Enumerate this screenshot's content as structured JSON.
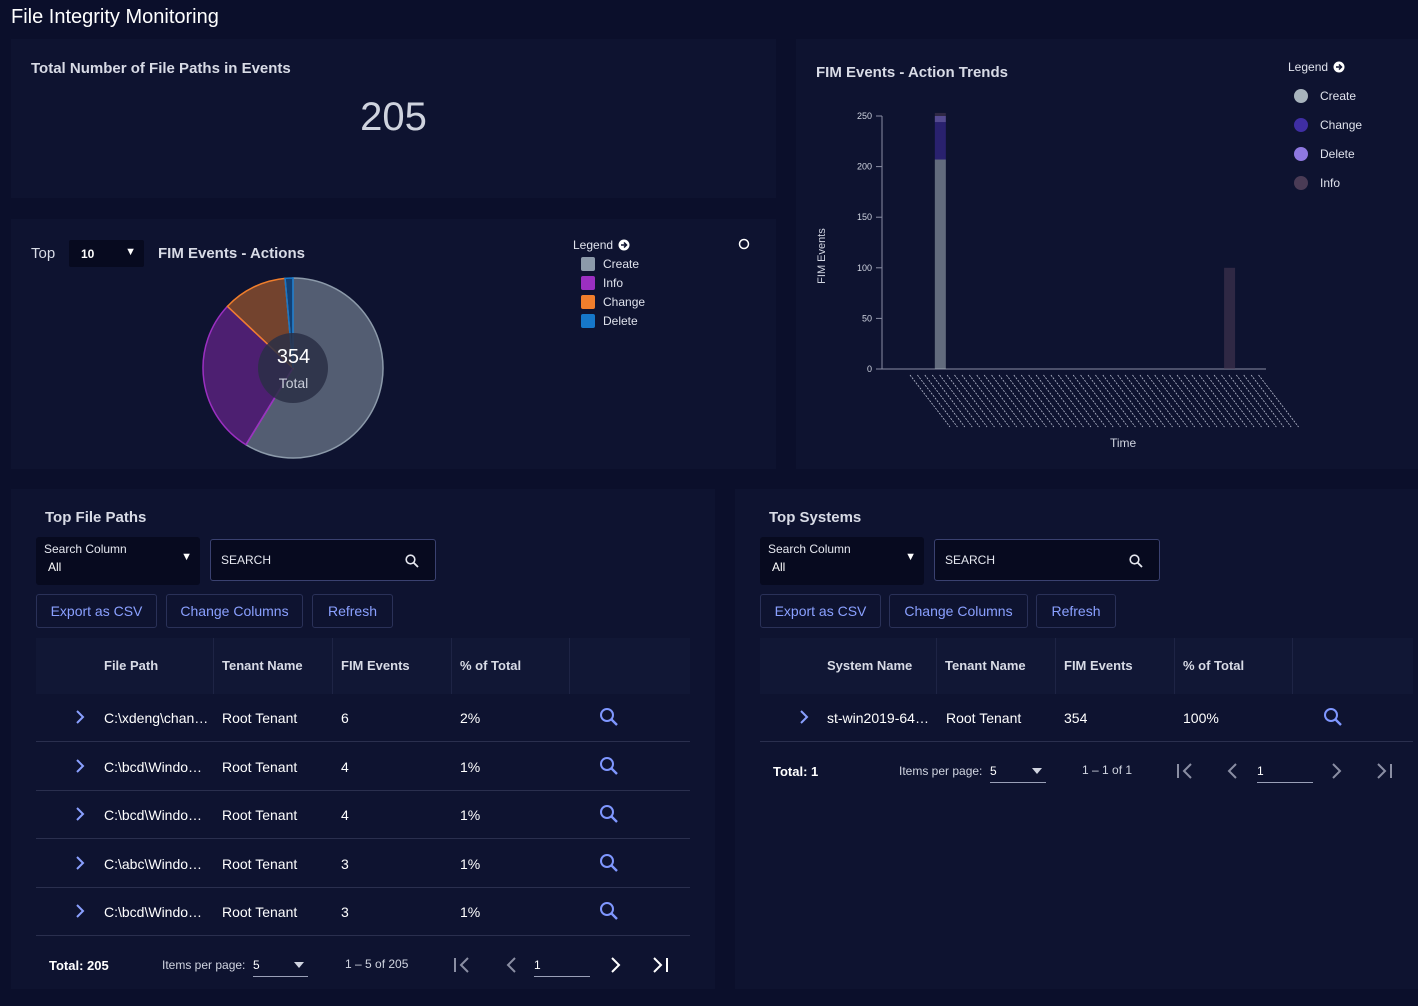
{
  "page": {
    "title": "File Integrity Monitoring"
  },
  "total_paths": {
    "title": "Total Number of File Paths in Events",
    "value": "205"
  },
  "actions_panel": {
    "top_label": "Top",
    "top_value": "10",
    "title": "FIM Events - Actions",
    "legend_title": "Legend",
    "legend": [
      {
        "label": "Create",
        "color": "#8c9aaa"
      },
      {
        "label": "Info",
        "color": "#9b2fc1"
      },
      {
        "label": "Change",
        "color": "#f07e2c"
      },
      {
        "label": "Delete",
        "color": "#1677c9"
      }
    ],
    "donut_value": "354",
    "donut_label": "Total"
  },
  "trends_panel": {
    "title": "FIM Events - Action Trends",
    "legend_title": "Legend",
    "legend": [
      {
        "label": "Create",
        "color": "#a8b4bd"
      },
      {
        "label": "Change",
        "color": "#3f2ea3"
      },
      {
        "label": "Delete",
        "color": "#8e78e0"
      },
      {
        "label": "Info",
        "color": "#4a3b55"
      }
    ]
  },
  "file_paths": {
    "title": "Top File Paths",
    "search_column_label": "Search Column",
    "search_column_value": "All",
    "search_placeholder": "SEARCH",
    "buttons": {
      "export": "Export as CSV",
      "columns": "Change Columns",
      "refresh": "Refresh"
    },
    "columns": [
      "File Path",
      "Tenant Name",
      "FIM Events",
      "% of Total"
    ],
    "rows": [
      {
        "path": "C:\\xdeng\\chan…",
        "tenant": "Root Tenant",
        "events": "6",
        "pct": "2%"
      },
      {
        "path": "C:\\bcd\\Windo…",
        "tenant": "Root Tenant",
        "events": "4",
        "pct": "1%"
      },
      {
        "path": "C:\\bcd\\Windo…",
        "tenant": "Root Tenant",
        "events": "4",
        "pct": "1%"
      },
      {
        "path": "C:\\abc\\Windo…",
        "tenant": "Root Tenant",
        "events": "3",
        "pct": "1%"
      },
      {
        "path": "C:\\bcd\\Windo…",
        "tenant": "Root Tenant",
        "events": "3",
        "pct": "1%"
      }
    ],
    "footer": {
      "total": "Total: 205",
      "items_label": "Items per page:",
      "items_value": "5",
      "range": "1 – 5 of 205",
      "page": "1"
    }
  },
  "systems": {
    "title": "Top Systems",
    "search_column_label": "Search Column",
    "search_column_value": "All",
    "search_placeholder": "SEARCH",
    "buttons": {
      "export": "Export as CSV",
      "columns": "Change Columns",
      "refresh": "Refresh"
    },
    "columns": [
      "System Name",
      "Tenant Name",
      "FIM Events",
      "% of Total"
    ],
    "rows": [
      {
        "name": "st-win2019-64…",
        "tenant": "Root Tenant",
        "events": "354",
        "pct": "100%"
      }
    ],
    "footer": {
      "total": "Total: 1",
      "items_label": "Items per page:",
      "items_value": "5",
      "range": "1 – 1 of 1",
      "page": "1"
    }
  },
  "chart_data": [
    {
      "type": "pie",
      "title": "FIM Events - Actions",
      "center_text": "354 Total",
      "categories": [
        "Create",
        "Info",
        "Change",
        "Delete"
      ],
      "values": [
        208,
        100,
        41,
        5
      ],
      "colors": [
        "#8c9aaa",
        "#9b2fc1",
        "#f07e2c",
        "#1677c9"
      ],
      "legend": "top-right"
    },
    {
      "type": "bar",
      "title": "FIM Events - Action Trends",
      "xlabel": "Time",
      "ylabel": "FIM Events",
      "ylim": [
        0,
        250
      ],
      "yticks": [
        0,
        50,
        100,
        150,
        200,
        250
      ],
      "n_categories": 48,
      "series": [
        {
          "name": "Create",
          "color": "#a8b4bd",
          "values_at": {
            "2": 207
          }
        },
        {
          "name": "Change",
          "color": "#3f2ea3",
          "values_at": {
            "2": 37
          }
        },
        {
          "name": "Delete",
          "color": "#8e78e0",
          "values_at": {
            "2": 6
          }
        },
        {
          "name": "Info",
          "color": "#4a3b55",
          "values_at": {
            "2": 3,
            "41": 100
          }
        }
      ],
      "legend": "top-right"
    }
  ]
}
